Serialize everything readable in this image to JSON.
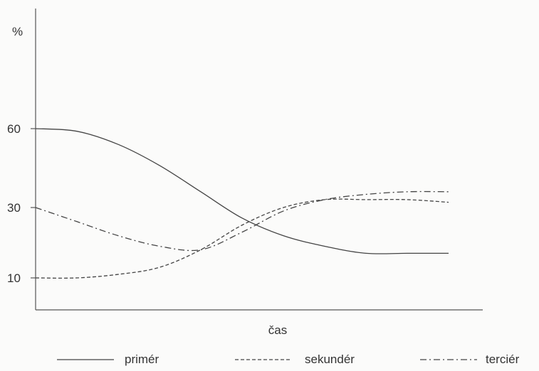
{
  "chart_data": {
    "type": "line",
    "ylabel": "%",
    "xlabel": "čas",
    "y_ticks": [
      {
        "value": 60,
        "label": "60"
      },
      {
        "value": 30,
        "label": "30"
      },
      {
        "value": 10,
        "label": "10"
      }
    ],
    "y_scale": "categorical-ticks",
    "grid": false,
    "legend_position": "bottom",
    "x_ticks": [],
    "series": [
      {
        "name": "primér",
        "style": "solid",
        "color": "#444444",
        "x": [
          0,
          0.1,
          0.2,
          0.3,
          0.4,
          0.5,
          0.6,
          0.7,
          0.8,
          0.9,
          1.0
        ],
        "values": [
          60,
          59,
          54,
          46,
          36,
          27,
          22,
          19,
          17,
          17,
          17
        ]
      },
      {
        "name": "sekundér",
        "style": "dashed",
        "color": "#444444",
        "x": [
          0,
          0.1,
          0.2,
          0.3,
          0.4,
          0.5,
          0.6,
          0.7,
          0.8,
          0.9,
          1.0
        ],
        "values": [
          10,
          10,
          11,
          13,
          18,
          25,
          30,
          33,
          33,
          33,
          32
        ]
      },
      {
        "name": "terciér",
        "style": "dash-dot",
        "color": "#444444",
        "x": [
          0,
          0.1,
          0.2,
          0.3,
          0.4,
          0.5,
          0.6,
          0.7,
          0.8,
          0.9,
          1.0
        ],
        "values": [
          30,
          26,
          22,
          19,
          18,
          23,
          29,
          33,
          35,
          36,
          36
        ]
      }
    ]
  }
}
